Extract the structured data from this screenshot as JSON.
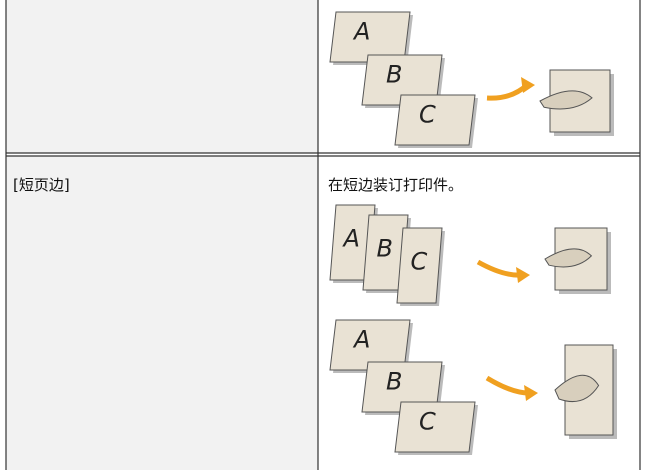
{
  "rows": [
    {
      "setting": "[短页边]",
      "description": "在短边装订打印件。"
    }
  ],
  "illustration_letters": [
    "A",
    "B",
    "C"
  ]
}
